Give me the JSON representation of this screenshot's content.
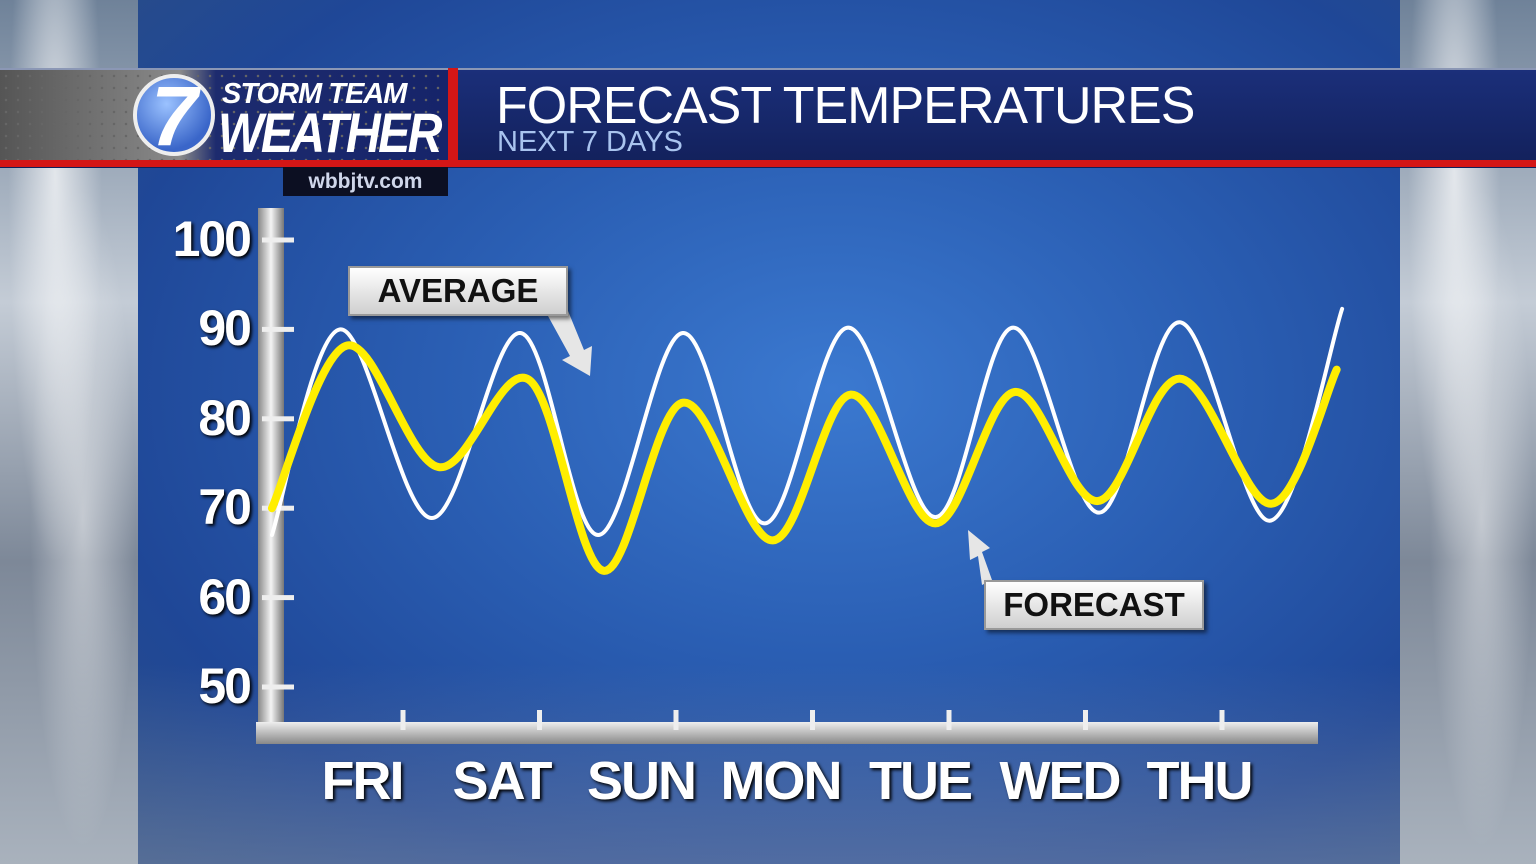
{
  "header": {
    "brand_top": "STORM TEAM",
    "brand_bottom": "WEATHER",
    "logo_number": "7",
    "url": "wbbjtv.com",
    "title": "FORECAST TEMPERATURES",
    "subtitle": "NEXT 7 DAYS"
  },
  "colors": {
    "forecast": "#ffee00",
    "average": "#ffffff",
    "accent_red": "#d41616",
    "background_blue": "#2a5eb3"
  },
  "chart_data": {
    "type": "line",
    "title": "FORECAST TEMPERATURES",
    "subtitle": "NEXT 7 DAYS",
    "categories": [
      "FRI",
      "SAT",
      "SUN",
      "MON",
      "TUE",
      "WED",
      "THU"
    ],
    "yticks": [
      "100",
      "90",
      "80",
      "70",
      "60",
      "50"
    ],
    "ylim": [
      50,
      100
    ],
    "grid": false,
    "series": [
      {
        "name": "AVERAGE",
        "color": "#ffffff",
        "points": [
          [
            0.04,
            67
          ],
          [
            0.54,
            90
          ],
          [
            1.21,
            68.9
          ],
          [
            1.86,
            89.6
          ],
          [
            2.43,
            67
          ],
          [
            3.05,
            89.6
          ],
          [
            3.65,
            68.3
          ],
          [
            4.26,
            90.2
          ],
          [
            4.9,
            69
          ],
          [
            5.47,
            90.2
          ],
          [
            6.1,
            69.5
          ],
          [
            6.69,
            90.8
          ],
          [
            7.35,
            68.6
          ],
          [
            7.88,
            92.3
          ]
        ]
      },
      {
        "name": "FORECAST",
        "color": "#ffee00",
        "points": [
          [
            0.04,
            70
          ],
          [
            0.59,
            88.2
          ],
          [
            1.26,
            74.6
          ],
          [
            1.92,
            84.4
          ],
          [
            2.47,
            63
          ],
          [
            3.05,
            81.8
          ],
          [
            3.71,
            66.4
          ],
          [
            4.28,
            82.7
          ],
          [
            4.9,
            68.3
          ],
          [
            5.48,
            83
          ],
          [
            6.09,
            70.8
          ],
          [
            6.69,
            84.5
          ],
          [
            7.36,
            70.5
          ],
          [
            7.84,
            85.5
          ]
        ]
      }
    ]
  }
}
